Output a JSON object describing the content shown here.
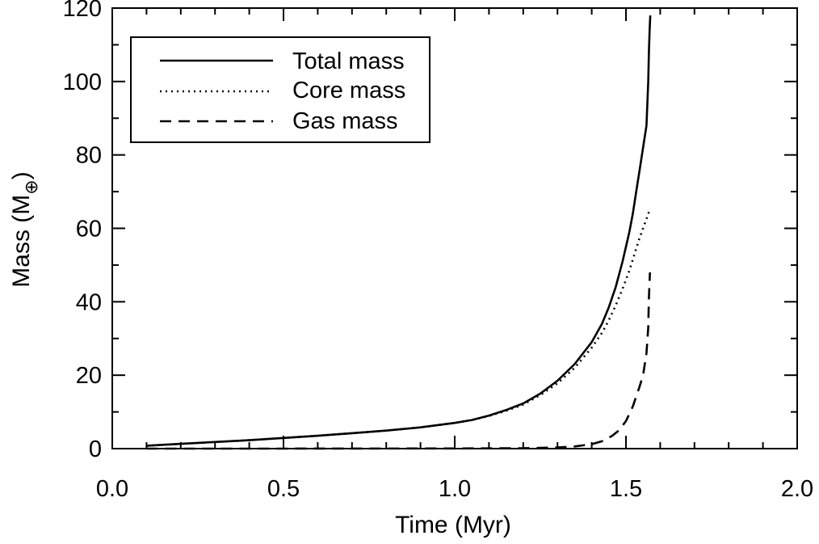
{
  "chart_data": {
    "type": "line",
    "title": "",
    "xlabel": "Time (Myr)",
    "ylabel": "Mass (M⊕)",
    "ylabel_main": "Mass (M",
    "ylabel_sub": "⊕",
    "ylabel_close": ")",
    "xlim": [
      0.0,
      2.0
    ],
    "ylim": [
      0,
      120
    ],
    "xticks": [
      0.0,
      0.5,
      1.0,
      1.5,
      2.0
    ],
    "xtick_labels": [
      "0.0",
      "0.5",
      "1.0",
      "1.5",
      "2.0"
    ],
    "yticks": [
      0,
      20,
      40,
      60,
      80,
      100,
      120
    ],
    "ytick_labels": [
      "0",
      "20",
      "40",
      "60",
      "80",
      "100",
      "120"
    ],
    "grid": false,
    "legend_position": "top-left",
    "series": [
      {
        "name": "Total mass",
        "style": "solid",
        "color": "#000000",
        "x": [
          0.1,
          0.2,
          0.3,
          0.4,
          0.5,
          0.6,
          0.7,
          0.8,
          0.9,
          1.0,
          1.05,
          1.1,
          1.15,
          1.2,
          1.25,
          1.3,
          1.35,
          1.4,
          1.43,
          1.45,
          1.47,
          1.49,
          1.51,
          1.52,
          1.53,
          1.54,
          1.55,
          1.56,
          1.565,
          1.567,
          1.569,
          1.571
        ],
        "y": [
          0.8,
          1.3,
          1.8,
          2.3,
          2.9,
          3.5,
          4.2,
          4.9,
          5.8,
          7.0,
          7.8,
          9.0,
          10.5,
          12.3,
          15.0,
          18.5,
          23.0,
          29.0,
          34.0,
          38.5,
          44.0,
          51.0,
          59.0,
          64.0,
          70.0,
          76.0,
          82.0,
          88.0,
          100.0,
          108.0,
          114.0,
          118.0
        ]
      },
      {
        "name": "Core mass",
        "style": "dotted",
        "color": "#000000",
        "x": [
          0.1,
          0.2,
          0.3,
          0.4,
          0.5,
          0.6,
          0.7,
          0.8,
          0.9,
          1.0,
          1.05,
          1.1,
          1.15,
          1.2,
          1.25,
          1.3,
          1.35,
          1.4,
          1.43,
          1.45,
          1.47,
          1.49,
          1.51,
          1.52,
          1.53,
          1.54,
          1.55,
          1.56,
          1.565,
          1.57
        ],
        "y": [
          0.8,
          1.3,
          1.8,
          2.3,
          2.9,
          3.5,
          4.2,
          4.9,
          5.8,
          7.0,
          7.8,
          8.9,
          10.3,
          12.0,
          14.6,
          17.8,
          22.0,
          27.5,
          31.5,
          35.0,
          39.0,
          43.5,
          48.5,
          51.5,
          54.5,
          57.5,
          60.0,
          62.5,
          64.0,
          65.0
        ]
      },
      {
        "name": "Gas mass",
        "style": "dashed",
        "color": "#000000",
        "x": [
          0.1,
          0.5,
          1.0,
          1.2,
          1.3,
          1.35,
          1.4,
          1.43,
          1.46,
          1.48,
          1.5,
          1.52,
          1.54,
          1.55,
          1.56,
          1.565,
          1.567,
          1.57
        ],
        "y": [
          0.0,
          0.0,
          0.05,
          0.1,
          0.3,
          0.6,
          1.2,
          2.0,
          3.5,
          5.0,
          7.5,
          11.5,
          17.0,
          20.0,
          26.0,
          33.0,
          41.0,
          48.0
        ]
      }
    ]
  }
}
